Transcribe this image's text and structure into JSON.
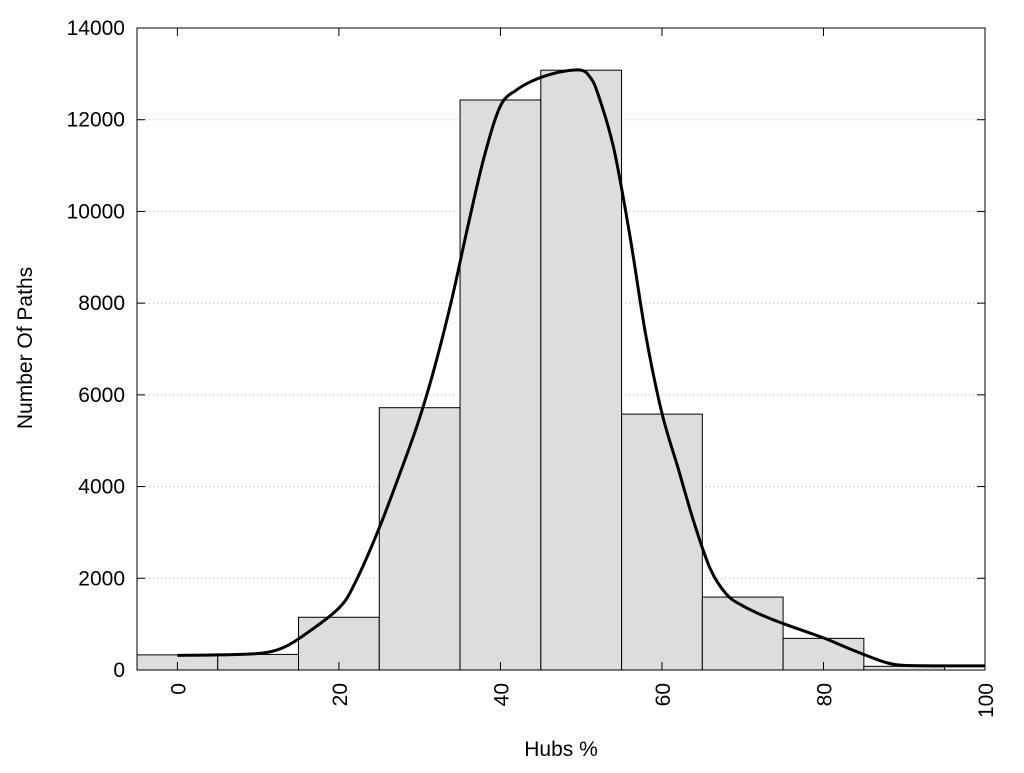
{
  "chart_data": {
    "type": "bar",
    "title": "",
    "xlabel": "Hubs %",
    "ylabel": "Number Of Paths",
    "xlim": [
      -5,
      100
    ],
    "ylim": [
      0,
      14000
    ],
    "grid": true,
    "x_ticks": [
      0,
      20,
      40,
      60,
      80,
      100
    ],
    "x_tick_labels": [
      "0",
      "20",
      "40",
      "60",
      "80",
      "100"
    ],
    "y_ticks": [
      0,
      2000,
      4000,
      6000,
      8000,
      10000,
      12000,
      14000
    ],
    "y_tick_labels": [
      "0",
      "2000",
      "4000",
      "6000",
      "8000",
      "10000",
      "12000",
      "14000"
    ],
    "bin_width": 10,
    "bins": [
      {
        "center": 0,
        "value": 330
      },
      {
        "center": 10,
        "value": 340
      },
      {
        "center": 20,
        "value": 1150
      },
      {
        "center": 30,
        "value": 5720
      },
      {
        "center": 40,
        "value": 12430
      },
      {
        "center": 50,
        "value": 13080
      },
      {
        "center": 60,
        "value": 5580
      },
      {
        "center": 70,
        "value": 1590
      },
      {
        "center": 80,
        "value": 690
      },
      {
        "center": 90,
        "value": 80
      }
    ],
    "curve": {
      "x": [
        0,
        5,
        10,
        13,
        16,
        20,
        22,
        25,
        28,
        30,
        32,
        34,
        36,
        38,
        40,
        42,
        44,
        46,
        48,
        50,
        51,
        52,
        54,
        56,
        58,
        60,
        62,
        64,
        66,
        68,
        70,
        73,
        76,
        80,
        83,
        86,
        88,
        90,
        95,
        100
      ],
      "y": [
        320,
        330,
        360,
        480,
        800,
        1350,
        1900,
        3100,
        4500,
        5500,
        6700,
        8100,
        9700,
        11200,
        12300,
        12650,
        12850,
        12980,
        13060,
        13080,
        12950,
        12600,
        11400,
        9500,
        7300,
        5600,
        4400,
        3200,
        2200,
        1650,
        1400,
        1150,
        950,
        700,
        480,
        270,
        150,
        100,
        90,
        90
      ]
    },
    "colors": {
      "bar_fill": "#dddddd",
      "bar_stroke": "#000000",
      "curve": "#000000",
      "grid": "#bbbbbb"
    }
  }
}
